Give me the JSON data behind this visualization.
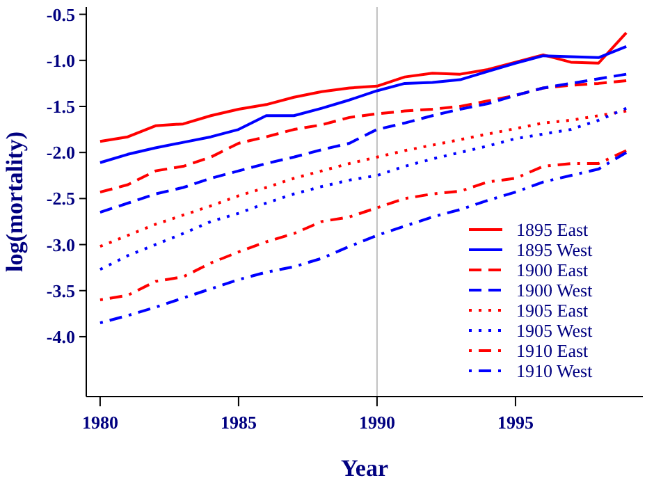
{
  "chart_data": {
    "type": "line",
    "xlabel": "Year",
    "ylabel": "log(mortality)",
    "x": [
      1980,
      1981,
      1982,
      1983,
      1984,
      1985,
      1986,
      1987,
      1988,
      1989,
      1990,
      1991,
      1992,
      1993,
      1994,
      1995,
      1996,
      1997,
      1998,
      1999
    ],
    "xlim": [
      1979.5,
      1999.6
    ],
    "xticks": [
      1980,
      1985,
      1990,
      1995
    ],
    "ylim": [
      -4.65,
      -0.42
    ],
    "yticks": [
      {
        "value": -0.5,
        "label": "-0.5"
      },
      {
        "value": -1,
        "label": "-1.0"
      },
      {
        "value": -1.5,
        "label": "-1.5"
      },
      {
        "value": -2,
        "label": "-2.0"
      },
      {
        "value": -2.5,
        "label": "-2.5"
      },
      {
        "value": -3,
        "label": "-3.0"
      },
      {
        "value": -3.5,
        "label": "-3.5"
      },
      {
        "value": -4,
        "label": "-4.0"
      }
    ],
    "grid": false,
    "legend": "bottom right",
    "ref_lines": [
      {
        "axis": "x",
        "value": 1990,
        "color": "#c0c0c0"
      }
    ],
    "series": [
      {
        "name": "1895 East",
        "color": "#ff0000",
        "line_style": "solid",
        "values": [
          -1.88,
          -1.83,
          -1.71,
          -1.69,
          -1.6,
          -1.53,
          -1.48,
          -1.4,
          -1.34,
          -1.3,
          -1.28,
          -1.18,
          -1.14,
          -1.15,
          -1.1,
          -1.02,
          -0.94,
          -1.02,
          -1.03,
          -0.7
        ]
      },
      {
        "name": "1895 West",
        "color": "#0000ff",
        "line_style": "solid",
        "values": [
          -2.11,
          -2.02,
          -1.95,
          -1.89,
          -1.83,
          -1.75,
          -1.6,
          -1.6,
          -1.52,
          -1.43,
          -1.33,
          -1.25,
          -1.24,
          -1.21,
          -1.12,
          -1.03,
          -0.95,
          -0.96,
          -0.97,
          -0.85
        ]
      },
      {
        "name": "1900 East",
        "color": "#ff0000",
        "line_style": "dashed",
        "values": [
          -2.43,
          -2.35,
          -2.2,
          -2.15,
          -2.05,
          -1.9,
          -1.83,
          -1.75,
          -1.7,
          -1.62,
          -1.58,
          -1.55,
          -1.53,
          -1.5,
          -1.44,
          -1.38,
          -1.3,
          -1.27,
          -1.25,
          -1.22
        ]
      },
      {
        "name": "1900 West",
        "color": "#0000ff",
        "line_style": "dashed",
        "values": [
          -2.65,
          -2.55,
          -2.45,
          -2.38,
          -2.28,
          -2.2,
          -2.12,
          -2.05,
          -1.97,
          -1.9,
          -1.75,
          -1.68,
          -1.6,
          -1.53,
          -1.47,
          -1.38,
          -1.3,
          -1.25,
          -1.2,
          -1.15
        ]
      },
      {
        "name": "1905 East",
        "color": "#ff0000",
        "line_style": "dotted",
        "values": [
          -3.02,
          -2.9,
          -2.78,
          -2.68,
          -2.58,
          -2.47,
          -2.38,
          -2.28,
          -2.2,
          -2.12,
          -2.05,
          -1.98,
          -1.92,
          -1.86,
          -1.8,
          -1.74,
          -1.68,
          -1.65,
          -1.6,
          -1.55
        ]
      },
      {
        "name": "1905 West",
        "color": "#0000ff",
        "line_style": "dotted",
        "values": [
          -3.27,
          -3.12,
          -3.0,
          -2.88,
          -2.75,
          -2.66,
          -2.55,
          -2.45,
          -2.37,
          -2.3,
          -2.25,
          -2.15,
          -2.07,
          -2.0,
          -1.93,
          -1.85,
          -1.8,
          -1.75,
          -1.65,
          -1.52
        ]
      },
      {
        "name": "1910 East",
        "color": "#ff0000",
        "line_style": "dashdot",
        "values": [
          -3.6,
          -3.55,
          -3.4,
          -3.35,
          -3.2,
          -3.08,
          -2.97,
          -2.88,
          -2.75,
          -2.7,
          -2.6,
          -2.5,
          -2.45,
          -2.42,
          -2.32,
          -2.28,
          -2.15,
          -2.12,
          -2.12,
          -1.98
        ]
      },
      {
        "name": "1910 West",
        "color": "#0000ff",
        "line_style": "dashdot",
        "values": [
          -3.85,
          -3.77,
          -3.68,
          -3.58,
          -3.48,
          -3.38,
          -3.3,
          -3.24,
          -3.15,
          -3.02,
          -2.9,
          -2.8,
          -2.7,
          -2.62,
          -2.52,
          -2.43,
          -2.32,
          -2.25,
          -2.18,
          -2.0
        ]
      }
    ]
  }
}
